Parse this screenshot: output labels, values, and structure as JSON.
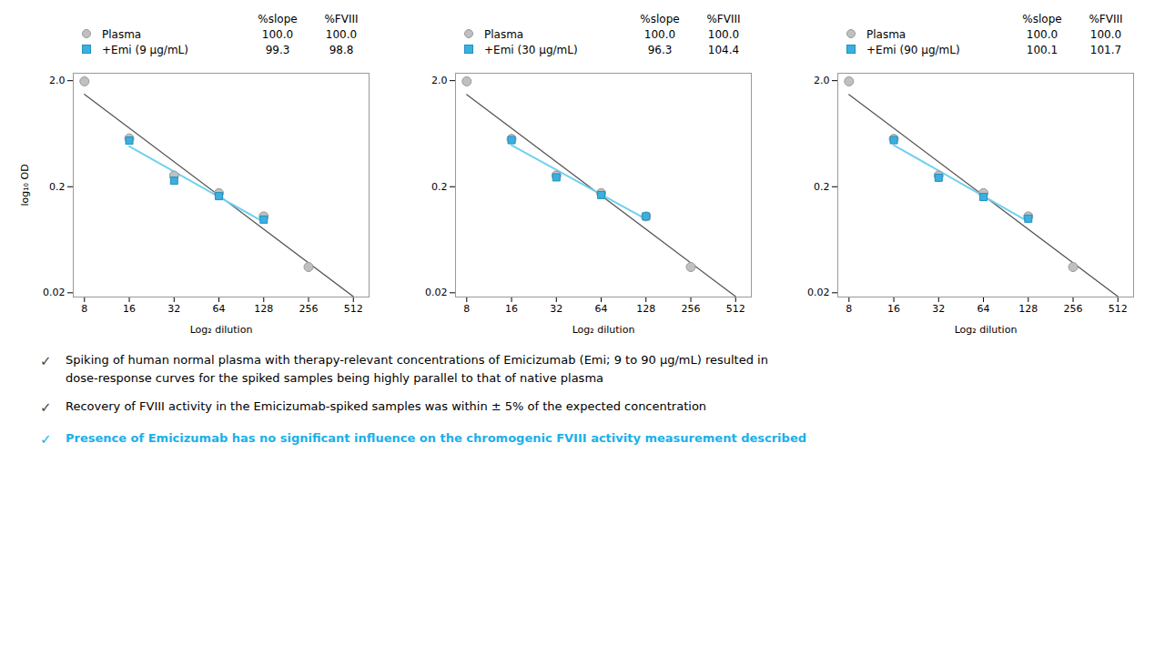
{
  "chart_data": [
    {
      "type": "scatter",
      "xlabel": "Log₂ dilution",
      "ylabel": "log₁₀ OD",
      "log": true,
      "xlim": [
        6.727,
        652.6
      ],
      "xticks": [
        8,
        16,
        32,
        64,
        128,
        256,
        512
      ],
      "ylim": [
        0.01824,
        2.35
      ],
      "yticks": [
        0.02,
        0.2,
        {
          "value": 2,
          "label": "2.0"
        }
      ],
      "legend": "top",
      "table_columns": [
        "%slope",
        "%FVIII"
      ],
      "series": [
        {
          "name": "Plasma",
          "marker": "circle",
          "color": "#c0c0c0",
          "edge_color": "#999999",
          "x": [
            8,
            16,
            32,
            64,
            128,
            256
          ],
          "values": [
            1.97,
            0.57,
            0.255,
            0.174,
            0.105,
            0.035
          ],
          "table_values": [
            100.0,
            100.0
          ],
          "table_labels": [
            "100.0",
            "100.0"
          ],
          "fit": {
            "x": [
              8,
              512
            ],
            "values": [
              1.4844,
              0.018404
            ],
            "color": "#555555"
          }
        },
        {
          "name": "+Emi (9 µg/mL)",
          "marker": "square",
          "color": "#3ab0e0",
          "edge_color": "#2090c0",
          "x": [
            16,
            32,
            64,
            128
          ],
          "values": [
            0.545,
            0.228,
            0.163,
            0.098
          ],
          "table_values": [
            99.3,
            98.8
          ],
          "table_labels": [
            "99.3",
            "98.8"
          ],
          "fit": {
            "x": [
              16,
              128
            ],
            "values": [
              0.48042,
              0.092737
            ],
            "color": "#70d0f0"
          }
        }
      ]
    },
    {
      "type": "scatter",
      "xlabel": "Log₂ dilution",
      "log": true,
      "xlim": [
        6.727,
        652.6
      ],
      "xticks": [
        8,
        16,
        32,
        64,
        128,
        256,
        512
      ],
      "ylim": [
        0.01824,
        2.35
      ],
      "yticks": [
        0.02,
        0.2,
        {
          "value": 2,
          "label": "2.0"
        }
      ],
      "legend": "top",
      "table_columns": [
        "%slope",
        "%FVIII"
      ],
      "series": [
        {
          "name": "Plasma",
          "marker": "circle",
          "color": "#c0c0c0",
          "edge_color": "#999999",
          "x": [
            8,
            16,
            32,
            64,
            128,
            256
          ],
          "values": [
            1.97,
            0.565,
            0.255,
            0.174,
            0.105,
            0.035
          ],
          "table_values": [
            100.0,
            100.0
          ],
          "table_labels": [
            "100.0",
            "100.0"
          ],
          "fit": {
            "x": [
              8,
              512
            ],
            "values": [
              1.4794,
              0.018425
            ],
            "color": "#555555"
          }
        },
        {
          "name": "+Emi (30 µg/mL)",
          "marker": "square",
          "color": "#3ab0e0",
          "edge_color": "#2090c0",
          "x": [
            16,
            32,
            64,
            128
          ],
          "values": [
            0.55,
            0.245,
            0.167,
            0.105
          ],
          "table_values": [
            96.3,
            104.4
          ],
          "table_labels": [
            "96.3",
            "104.4"
          ],
          "fit": {
            "x": [
              16,
              128
            ],
            "values": [
              0.49199,
              0.098801
            ],
            "color": "#70d0f0"
          }
        }
      ]
    },
    {
      "type": "scatter",
      "xlabel": "Log₂ dilution",
      "log": true,
      "xlim": [
        6.727,
        652.6
      ],
      "xticks": [
        8,
        16,
        32,
        64,
        128,
        256,
        512
      ],
      "ylim": [
        0.01824,
        2.35
      ],
      "yticks": [
        0.02,
        0.2,
        {
          "value": 2,
          "label": "2.0"
        }
      ],
      "legend": "top",
      "table_columns": [
        "%slope",
        "%FVIII"
      ],
      "series": [
        {
          "name": "Plasma",
          "marker": "circle",
          "color": "#c0c0c0",
          "edge_color": "#999999",
          "x": [
            8,
            16,
            32,
            64,
            128,
            256
          ],
          "values": [
            1.97,
            0.565,
            0.255,
            0.174,
            0.105,
            0.035
          ],
          "table_values": [
            100.0,
            100.0
          ],
          "table_labels": [
            "100.0",
            "100.0"
          ],
          "fit": {
            "x": [
              8,
              512
            ],
            "values": [
              1.4794,
              0.018425
            ],
            "color": "#555555"
          }
        },
        {
          "name": "+Emi (90 µg/mL)",
          "marker": "square",
          "color": "#3ab0e0",
          "edge_color": "#2090c0",
          "x": [
            16,
            32,
            64,
            128
          ],
          "values": [
            0.55,
            0.243,
            0.16,
            0.1
          ],
          "table_values": [
            100.1,
            101.7
          ],
          "table_labels": [
            "100.1",
            "101.7"
          ],
          "fit": {
            "x": [
              16,
              128
            ],
            "values": [
              0.49307,
              0.093786
            ],
            "color": "#70d0f0"
          }
        }
      ]
    }
  ],
  "annotations": [
    {
      "symbol": "✓",
      "symbol_color": "#444444",
      "lines": [
        "Spiking of human normal plasma with therapy-relevant concentrations of Emicizumab (Emi; 9 to 90 µg/mL) resulted in",
        "dose-response curves for the spiked samples being highly parallel to that of native plasma"
      ]
    },
    {
      "symbol": "✓",
      "symbol_color": "#444444",
      "lines": [
        "Recovery of FVIII activity in the Emicizumab-spiked samples was within ± 5% of the expected concentration"
      ]
    },
    {
      "symbol": "✓",
      "symbol_color": "#1ab0e8",
      "color": "#1ab0e8",
      "lines": [
        "Presence of Emicizumab has no significant influence on the chromogenic FVIII activity measurement described"
      ]
    }
  ]
}
